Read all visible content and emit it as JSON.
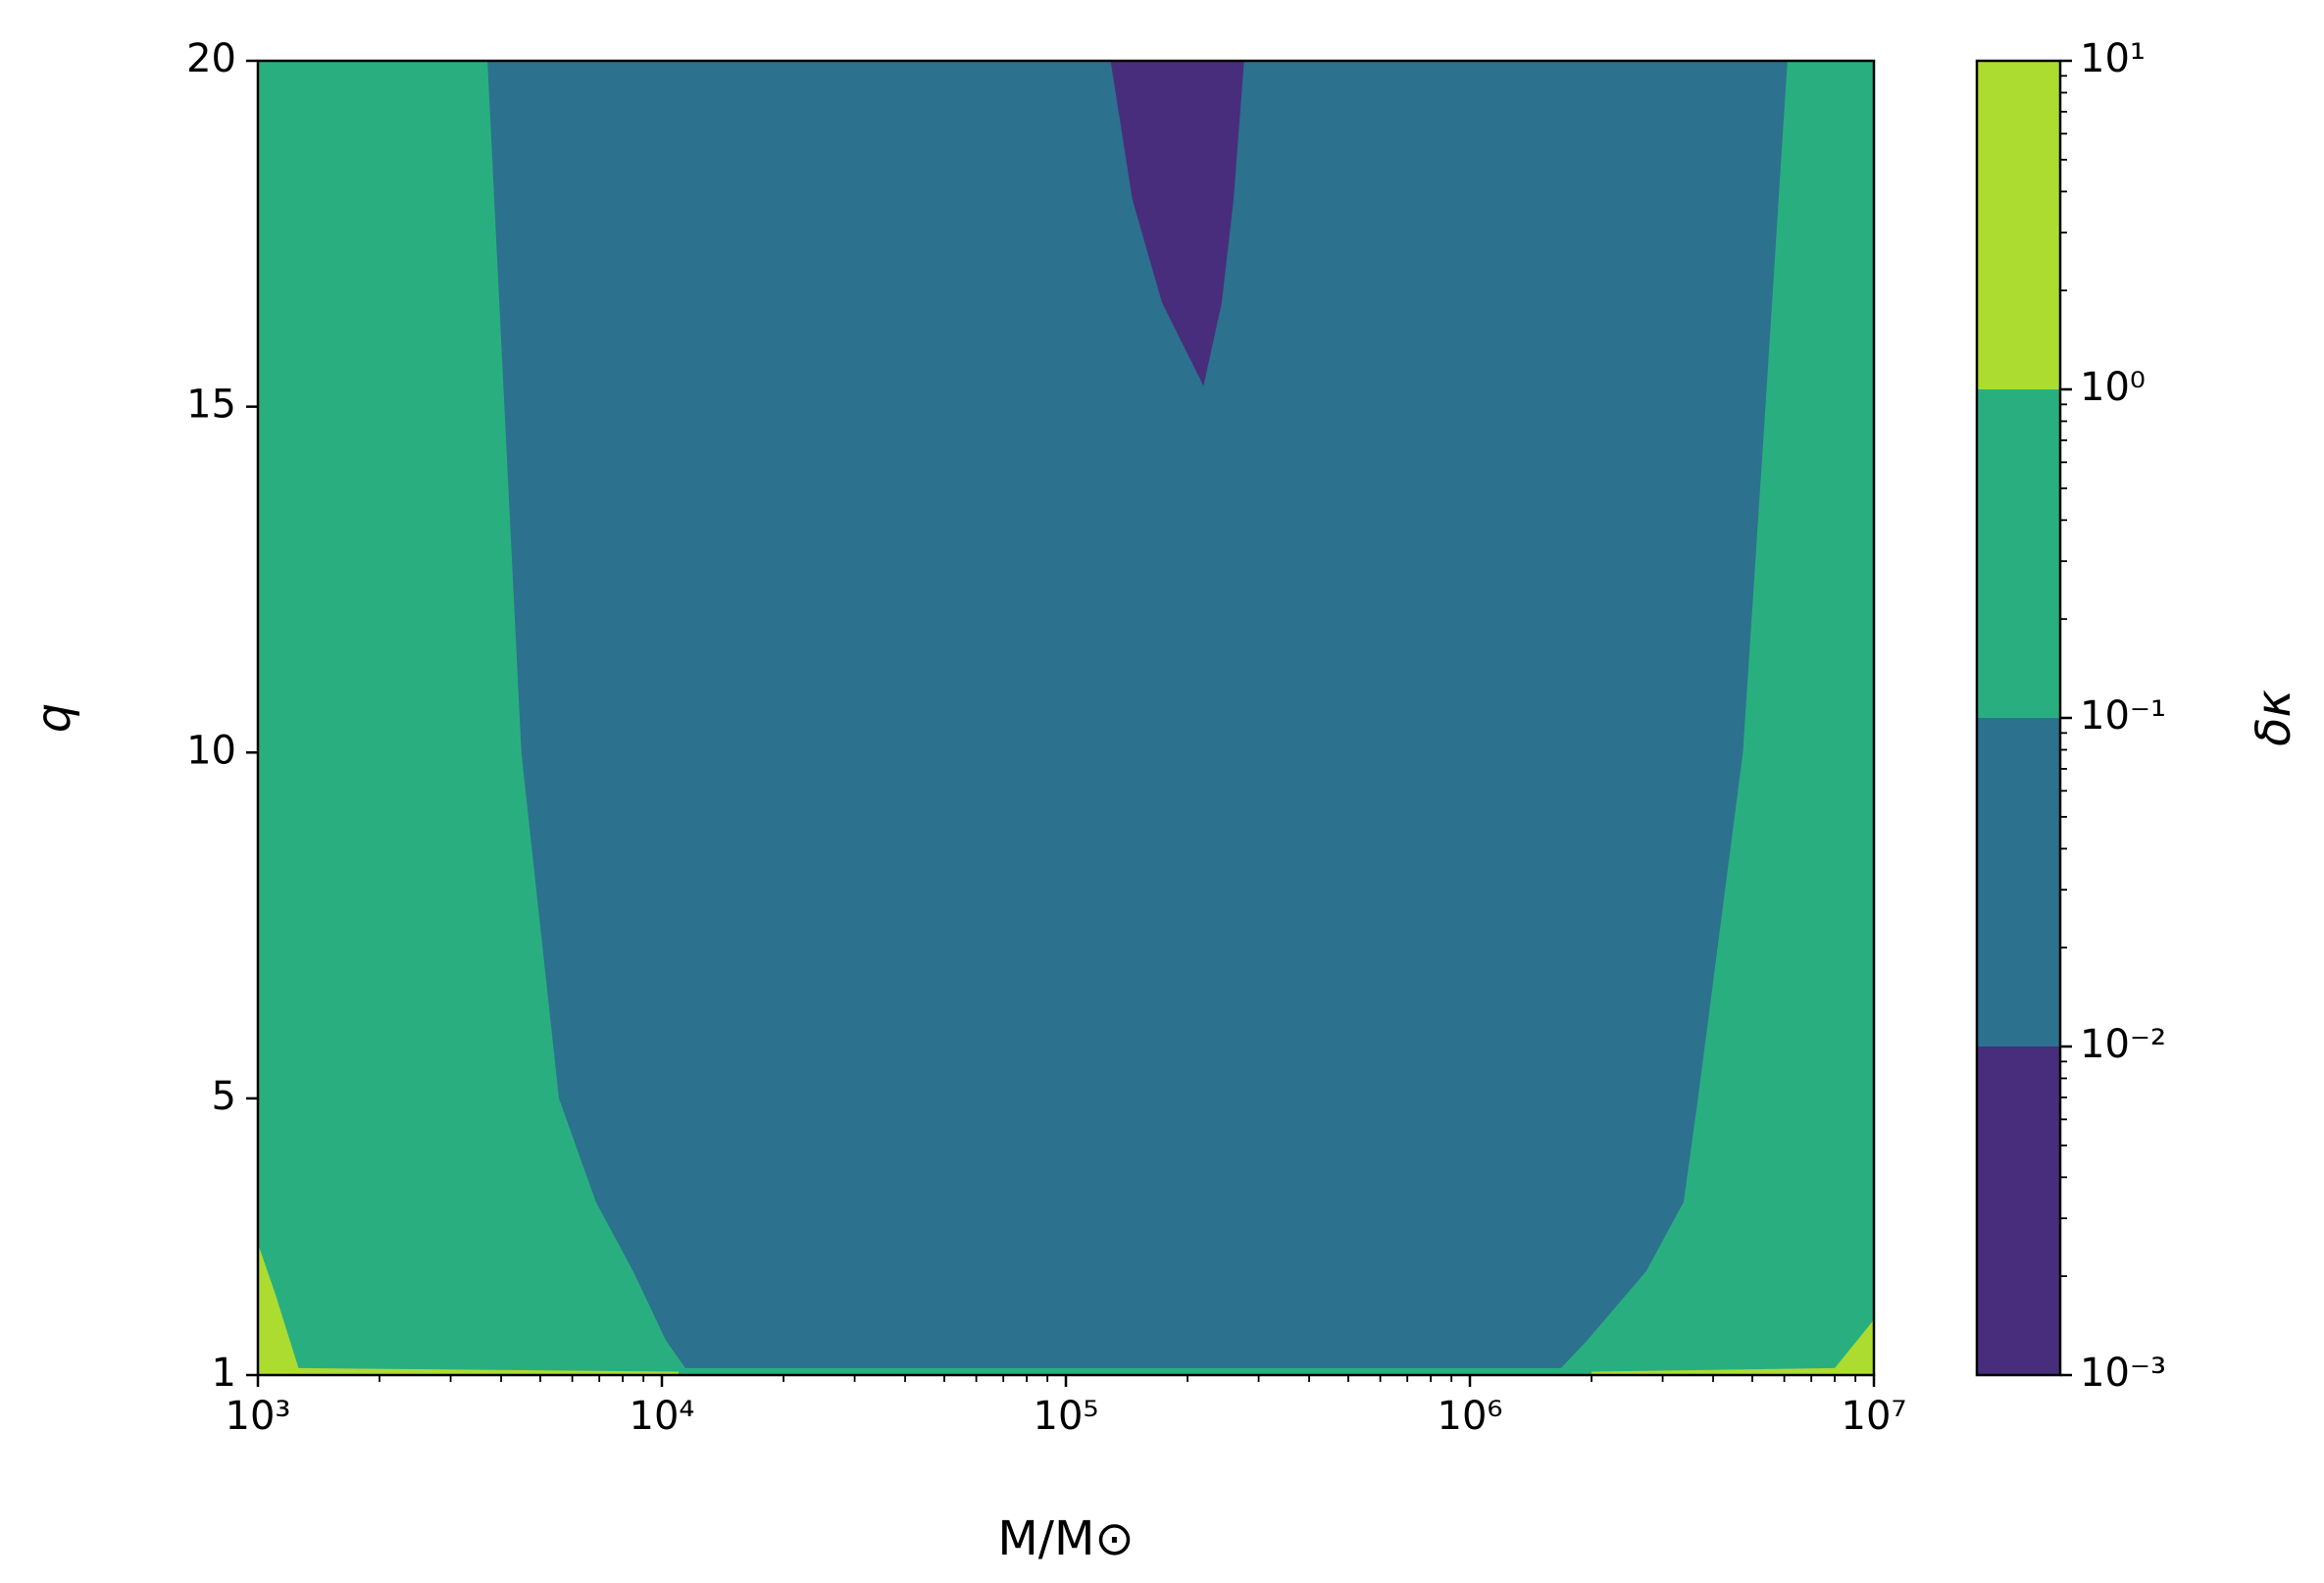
{
  "chart_data": {
    "type": "contourf",
    "xlabel": "M/M⊙",
    "ylabel": "q",
    "colorbar_label": "δκ",
    "xscale": "log",
    "xlim": [
      1000,
      10000000
    ],
    "xticks": [
      {
        "value": 1000,
        "label": "10³"
      },
      {
        "value": 10000,
        "label": "10⁴"
      },
      {
        "value": 100000,
        "label": "10⁵"
      },
      {
        "value": 1000000,
        "label": "10⁶"
      },
      {
        "value": 10000000,
        "label": "10⁷"
      }
    ],
    "ylim": [
      1,
      20
    ],
    "yticks": [
      1,
      5,
      10,
      15,
      20
    ],
    "levels": [
      0.001,
      0.01,
      0.1,
      1,
      10
    ],
    "level_ticks": [
      {
        "value": 0.001,
        "label": "10⁻³"
      },
      {
        "value": 0.01,
        "label": "10⁻²"
      },
      {
        "value": 0.1,
        "label": "10⁻¹"
      },
      {
        "value": 1,
        "label": "10⁰"
      },
      {
        "value": 10,
        "label": "10¹"
      }
    ],
    "colors": [
      "#472d7b",
      "#2c718e",
      "#29af7f",
      "#addc30"
    ],
    "background_color": "#29af7f",
    "regions": [
      {
        "color": "#2c718e",
        "x": [
          3700,
          4490,
          5560,
          6870,
          8490,
          10230,
          11430,
          1680000,
          1950000,
          2730000,
          3380000,
          3670000,
          4740000,
          5390000,
          6110000
        ],
        "y": [
          20,
          10,
          5,
          3.5,
          2.5,
          1.5,
          1.1,
          1.1,
          1.5,
          2.5,
          3.5,
          5,
          10,
          15,
          20
        ]
      },
      {
        "color": "#472d7b",
        "x": [
          129000,
          146000,
          173000,
          219000,
          243000,
          260000,
          276000
        ],
        "y": [
          20,
          18,
          16.5,
          15.3,
          16.5,
          18,
          20
        ]
      },
      {
        "color": "#addc30",
        "x": [
          1000,
          1000,
          1100,
          1260,
          11000,
          11000
        ],
        "y": [
          1,
          2.9,
          2.2,
          1.1,
          1.05,
          1
        ]
      },
      {
        "color": "#addc30",
        "x": [
          2000000,
          2000000,
          8000000,
          10000000,
          10000000
        ],
        "y": [
          1,
          1.05,
          1.1,
          1.8,
          1
        ]
      }
    ]
  }
}
